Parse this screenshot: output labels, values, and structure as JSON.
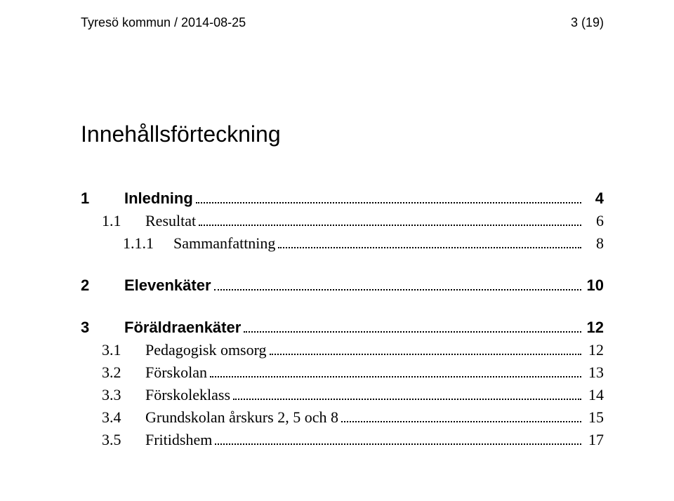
{
  "header": {
    "left": "Tyresö kommun  /  2014-08-25",
    "right": "3 (19)"
  },
  "title": "Innehållsförteckning",
  "toc": [
    {
      "num": "1",
      "label": "Inledning",
      "page": "4",
      "level": 0,
      "style": "bold",
      "groupStart": false
    },
    {
      "num": "1.1",
      "label": "Resultat",
      "page": "6",
      "level": 1,
      "style": "regular",
      "groupStart": false
    },
    {
      "num": "1.1.1",
      "label": "Sammanfattning",
      "page": "8",
      "level": 2,
      "style": "regular",
      "groupStart": false
    },
    {
      "num": "2",
      "label": "Elevenkäter",
      "page": "10",
      "level": 0,
      "style": "bold",
      "groupStart": true
    },
    {
      "num": "3",
      "label": "Föräldraenkäter",
      "page": "12",
      "level": 0,
      "style": "bold",
      "groupStart": true
    },
    {
      "num": "3.1",
      "label": "Pedagogisk omsorg",
      "page": "12",
      "level": 1,
      "style": "regular",
      "groupStart": false
    },
    {
      "num": "3.2",
      "label": "Förskolan",
      "page": "13",
      "level": 1,
      "style": "regular",
      "groupStart": false
    },
    {
      "num": "3.3",
      "label": "Förskoleklass",
      "page": "14",
      "level": 1,
      "style": "regular",
      "groupStart": false
    },
    {
      "num": "3.4",
      "label": "Grundskolan årskurs 2, 5 och 8",
      "page": "15",
      "level": 1,
      "style": "regular",
      "groupStart": false
    },
    {
      "num": "3.5",
      "label": "Fritidshem",
      "page": "17",
      "level": 1,
      "style": "regular",
      "groupStart": false
    }
  ]
}
